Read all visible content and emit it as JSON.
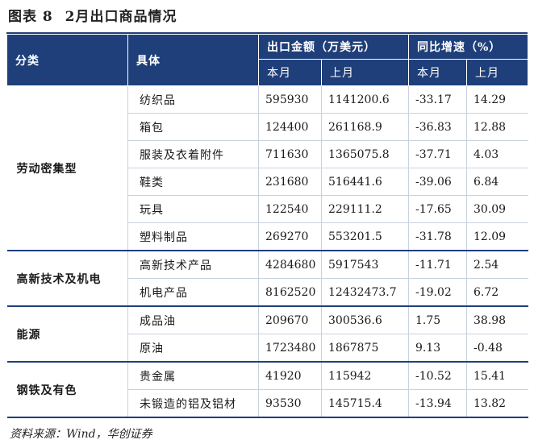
{
  "figure": {
    "label": "图表 8",
    "title": "2月出口商品情况"
  },
  "header": {
    "category": "分类",
    "item": "具体",
    "amount_group": "出口金额（万美元）",
    "yoy_group": "同比增速（%）",
    "current_month": "本月",
    "last_month": "上月"
  },
  "groups": [
    {
      "name": "劳动密集型",
      "rows": [
        {
          "item": "纺织品",
          "amount_cur": "595930",
          "amount_prev": "1141200.6",
          "yoy_cur": "-33.17",
          "yoy_prev": "14.29"
        },
        {
          "item": "箱包",
          "amount_cur": "124400",
          "amount_prev": "261168.9",
          "yoy_cur": "-36.83",
          "yoy_prev": "12.88"
        },
        {
          "item": "服装及衣着附件",
          "amount_cur": "711630",
          "amount_prev": "1365075.8",
          "yoy_cur": "-37.71",
          "yoy_prev": "4.03"
        },
        {
          "item": "鞋类",
          "amount_cur": "231680",
          "amount_prev": "516441.6",
          "yoy_cur": "-39.06",
          "yoy_prev": "6.84"
        },
        {
          "item": "玩具",
          "amount_cur": "122540",
          "amount_prev": "229111.2",
          "yoy_cur": "-17.65",
          "yoy_prev": "30.09"
        },
        {
          "item": "塑料制品",
          "amount_cur": "269270",
          "amount_prev": "553201.5",
          "yoy_cur": "-31.78",
          "yoy_prev": "12.09"
        }
      ]
    },
    {
      "name": "高新技术及机电",
      "rows": [
        {
          "item": "高新技术产品",
          "amount_cur": "4284680",
          "amount_prev": "5917543",
          "yoy_cur": "-11.71",
          "yoy_prev": "2.54"
        },
        {
          "item": "机电产品",
          "amount_cur": "8162520",
          "amount_prev": "12432473.7",
          "yoy_cur": "-19.02",
          "yoy_prev": "6.72"
        }
      ]
    },
    {
      "name": "能源",
      "rows": [
        {
          "item": "成品油",
          "amount_cur": "209670",
          "amount_prev": "300536.6",
          "yoy_cur": "1.75",
          "yoy_prev": "38.98"
        },
        {
          "item": "原油",
          "amount_cur": "1723480",
          "amount_prev": "1867875",
          "yoy_cur": "9.13",
          "yoy_prev": "-0.48"
        }
      ]
    },
    {
      "name": "钢铁及有色",
      "rows": [
        {
          "item": "贵金属",
          "amount_cur": "41920",
          "amount_prev": "115942",
          "yoy_cur": "-10.52",
          "yoy_prev": "15.41"
        },
        {
          "item": "未锻造的铝及铝材",
          "amount_cur": "93530",
          "amount_prev": "145715.4",
          "yoy_cur": "-13.94",
          "yoy_prev": "13.82"
        }
      ]
    }
  ],
  "source": "资料来源：Wind，华创证券",
  "colors": {
    "header_bg": "#1f3f7a",
    "rule": "#1f3f7a",
    "grid": "#c9d1e0"
  }
}
